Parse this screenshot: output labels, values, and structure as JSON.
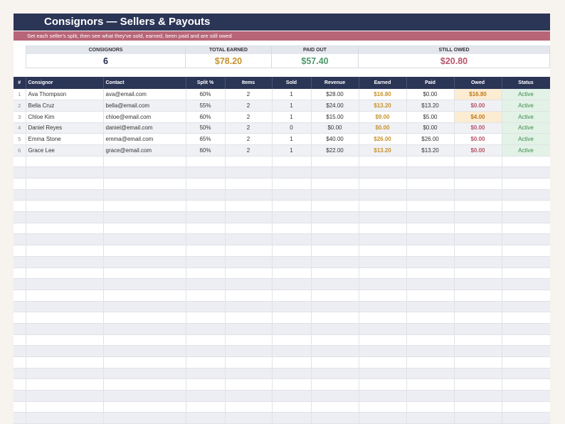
{
  "header": {
    "title": "Consignors — Sellers & Payouts",
    "subtitle": "Set each seller's split, then see what they've sold, earned, been paid and are still owed"
  },
  "summary": {
    "consignors_label": "CONSIGNORS",
    "consignors_value": "6",
    "earned_label": "TOTAL EARNED",
    "earned_value": "$78.20",
    "paid_label": "PAID OUT",
    "paid_value": "$57.40",
    "owed_label": "STILL OWED",
    "owed_value": "$20.80"
  },
  "colors": {
    "navy": "#2b3556",
    "rose": "#b86577",
    "gold": "#c8922c",
    "green": "#4c9a6a",
    "red": "#b8556b"
  },
  "columns": [
    "#",
    "Consignor",
    "Contact",
    "Split %",
    "Items",
    "Sold",
    "Revenue",
    "Earned",
    "Paid",
    "Owed",
    "Status"
  ],
  "rows": [
    {
      "n": "1",
      "name": "Ava Thompson",
      "contact": "ava@email.com",
      "split": "60%",
      "items": "2",
      "sold": "1",
      "revenue": "$28.00",
      "earned": "$16.80",
      "paid": "$0.00",
      "owed": "$16.80",
      "status": "Active"
    },
    {
      "n": "2",
      "name": "Bella Cruz",
      "contact": "bella@email.com",
      "split": "55%",
      "items": "2",
      "sold": "1",
      "revenue": "$24.00",
      "earned": "$13.20",
      "paid": "$13.20",
      "owed": "$0.00",
      "status": "Active"
    },
    {
      "n": "3",
      "name": "Chloe Kim",
      "contact": "chloe@email.com",
      "split": "60%",
      "items": "2",
      "sold": "1",
      "revenue": "$15.00",
      "earned": "$9.00",
      "paid": "$5.00",
      "owed": "$4.00",
      "status": "Active"
    },
    {
      "n": "4",
      "name": "Daniel Reyes",
      "contact": "daniel@email.com",
      "split": "50%",
      "items": "2",
      "sold": "0",
      "revenue": "$0.00",
      "earned": "$0.00",
      "paid": "$0.00",
      "owed": "$0.00",
      "status": "Active"
    },
    {
      "n": "5",
      "name": "Emma Stone",
      "contact": "emma@email.com",
      "split": "65%",
      "items": "2",
      "sold": "1",
      "revenue": "$40.00",
      "earned": "$26.00",
      "paid": "$26.00",
      "owed": "$0.00",
      "status": "Active"
    },
    {
      "n": "6",
      "name": "Grace Lee",
      "contact": "grace@email.com",
      "split": "60%",
      "items": "2",
      "sold": "1",
      "revenue": "$22.00",
      "earned": "$13.20",
      "paid": "$13.20",
      "owed": "$0.00",
      "status": "Active"
    }
  ]
}
